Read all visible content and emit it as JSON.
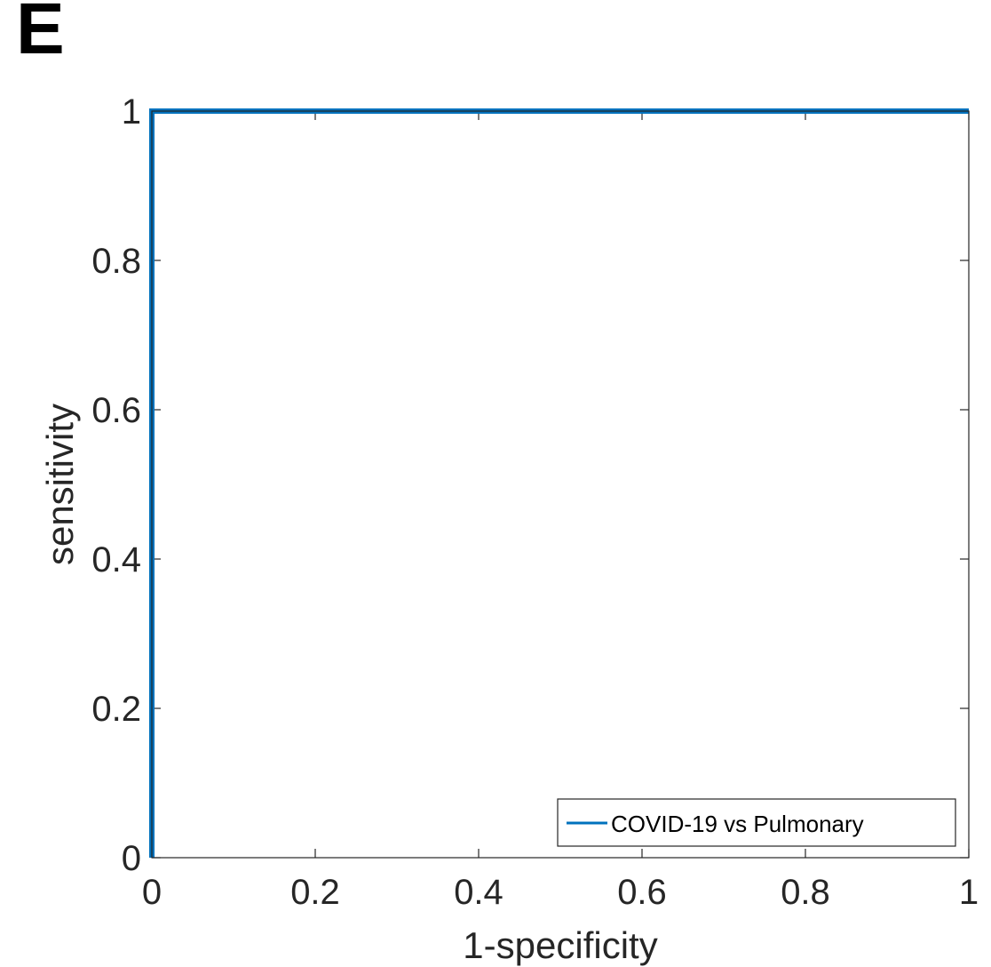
{
  "panel_label": "E",
  "chart_data": {
    "type": "line",
    "title": "",
    "xlabel": "1-specificity",
    "ylabel": "sensitivity",
    "xlim": [
      0,
      1
    ],
    "ylim": [
      0,
      1
    ],
    "xticks": [
      0,
      0.2,
      0.4,
      0.6,
      0.8,
      1
    ],
    "yticks": [
      0,
      0.2,
      0.4,
      0.6,
      0.8,
      1
    ],
    "xtick_labels": [
      "0",
      "0.2",
      "0.4",
      "0.6",
      "0.8",
      "1"
    ],
    "ytick_labels": [
      "0",
      "0.2",
      "0.4",
      "0.6",
      "0.8",
      "1"
    ],
    "grid": false,
    "legend_position": "bottom-right",
    "series": [
      {
        "name": "COVID-19 vs Pulmonary",
        "color": "#0072BD",
        "x": [
          0,
          0,
          1
        ],
        "y": [
          0,
          1,
          1
        ]
      }
    ]
  }
}
